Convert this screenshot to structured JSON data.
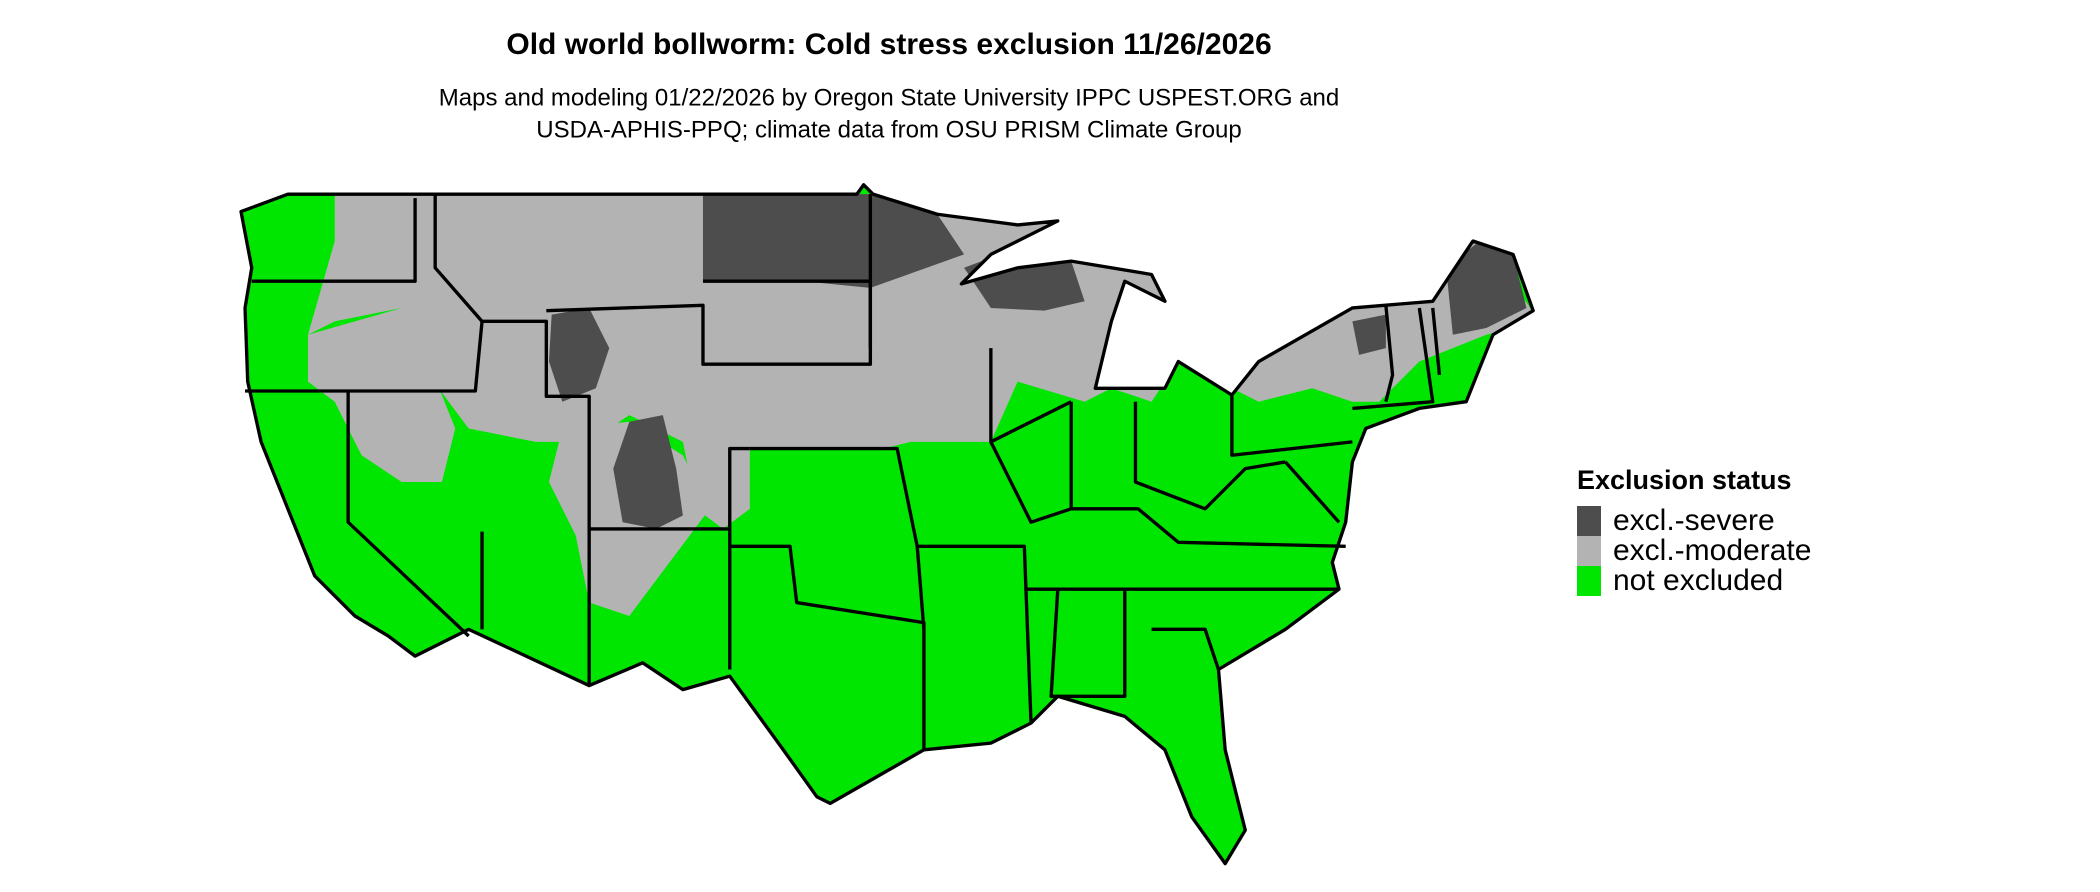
{
  "title": "Old world bollworm: Cold stress exclusion 11/26/2026",
  "subtitle_lines": [
    "Maps and modeling 01/22/2026 by Oregon State University IPPC USPEST.ORG and",
    "USDA-APHIS-PPQ; climate data from OSU PRISM Climate Group"
  ],
  "legend": {
    "title": "Exclusion status",
    "items": [
      {
        "label": "excl.-severe",
        "color": "#4d4d4d"
      },
      {
        "label": "excl.-moderate",
        "color": "#b3b3b3"
      },
      {
        "label": "not excluded",
        "color": "#00e600"
      }
    ]
  }
}
